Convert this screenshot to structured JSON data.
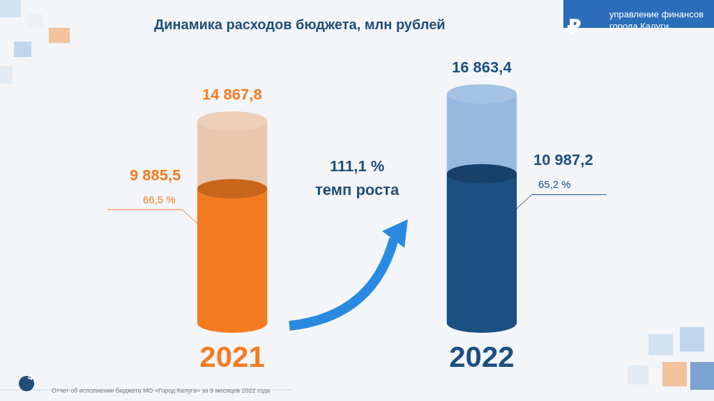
{
  "chart_data": {
    "type": "bar",
    "title": "Динамика расходов бюджета, млн рублей",
    "categories": [
      "2021",
      "2022"
    ],
    "stacked": false,
    "data_labels": true,
    "tick_labels": "x",
    "grid": false,
    "series": [
      {
        "values": [
          14867.8,
          16863.4
        ],
        "value_labels": [
          "14 867,8",
          "16 863,4"
        ],
        "colors": [
          "#e8bfa2",
          "#86aedb"
        ]
      },
      {
        "values": [
          9885.5,
          10987.2
        ],
        "value_labels": [
          "9 885,5",
          "10 987,2"
        ],
        "colors": [
          "#f47b20",
          "#1c4f82"
        ]
      }
    ],
    "shares": {
      "values": [
        66.5,
        65.2
      ],
      "value_labels": [
        "66,5 %",
        "65,2 %"
      ]
    },
    "growth_rate": {
      "value": 111.1,
      "label": "111,1 %",
      "text": "темп роста"
    }
  },
  "header": {
    "logo": "₽",
    "organization": [
      "управление финансов",
      "города Калуги"
    ]
  },
  "footer": {
    "text": "Отчет об исполнении бюджета МО «Город Калуга» за 9 месяцев 2022 года",
    "page": 4
  }
}
